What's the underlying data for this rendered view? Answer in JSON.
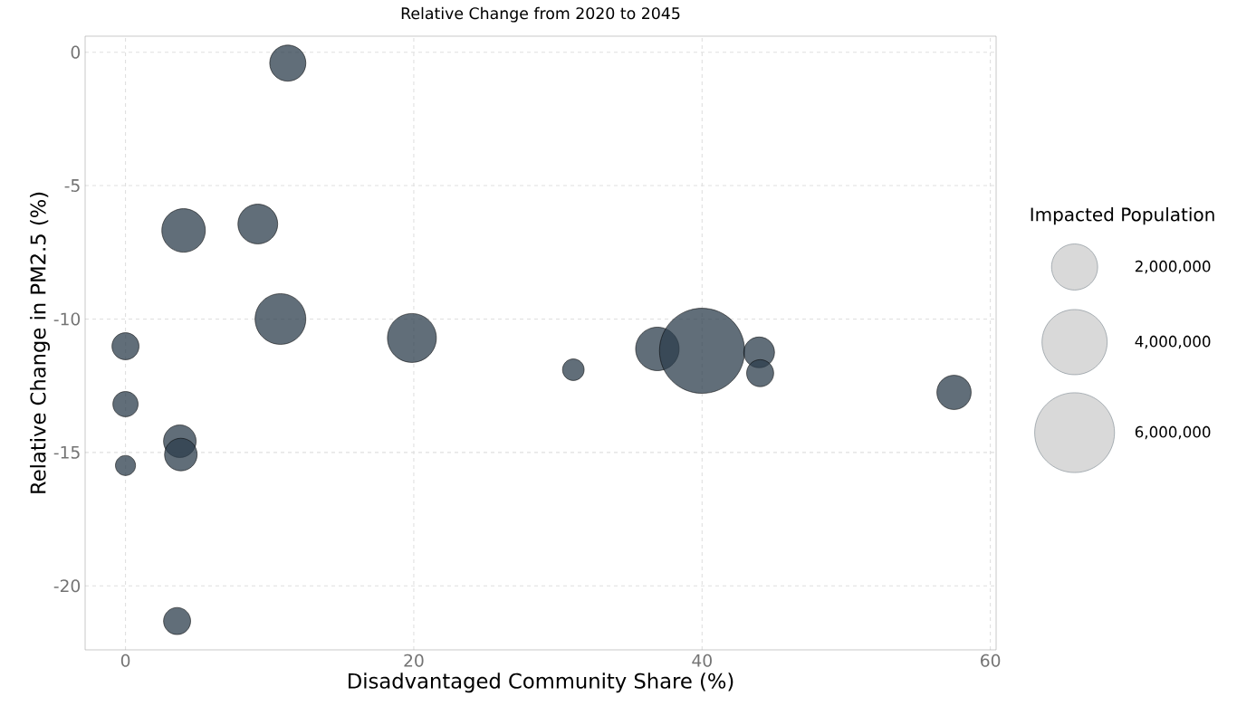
{
  "chart_data": {
    "type": "bubble",
    "title": "Relative Change from 2020 to 2045",
    "xlabel": "Disadvantaged Community Share (%)",
    "ylabel": "Relative Change in PM2.5 (%)",
    "legend_title": "Impacted Population",
    "x": [
      11.26,
      4.03,
      9.18,
      10.75,
      0,
      0,
      0,
      3.77,
      3.84,
      3.58,
      19.87,
      31.07,
      36.9,
      40.0,
      43.96,
      44.03,
      57.48
    ],
    "values": [
      -0.41,
      -6.68,
      -6.44,
      -10.0,
      -11.02,
      -13.19,
      -15.49,
      -14.58,
      -15.08,
      -21.32,
      -10.71,
      -11.9,
      -11.12,
      -11.19,
      -11.25,
      -12.03,
      -12.75
    ],
    "sizes": [
      1230000,
      1780000,
      1490000,
      2420000,
      690000,
      600000,
      380000,
      1000000,
      1000000,
      690000,
      2250000,
      440000,
      1780000,
      6820000,
      890000,
      690000,
      1110000
    ],
    "size_legend": [
      {
        "value": 2000000,
        "label": "2,000,000"
      },
      {
        "value": 4000000,
        "label": "4,000,000"
      },
      {
        "value": 6000000,
        "label": "6,000,000"
      }
    ],
    "color": "#2c3e4c",
    "xlim": [
      -2.8,
      60.4
    ],
    "ylim": [
      -22.4,
      0.6
    ],
    "xticks": [
      0,
      20,
      40,
      60
    ],
    "yticks": [
      0,
      -5,
      -10,
      -15,
      -20
    ],
    "grid": true
  }
}
